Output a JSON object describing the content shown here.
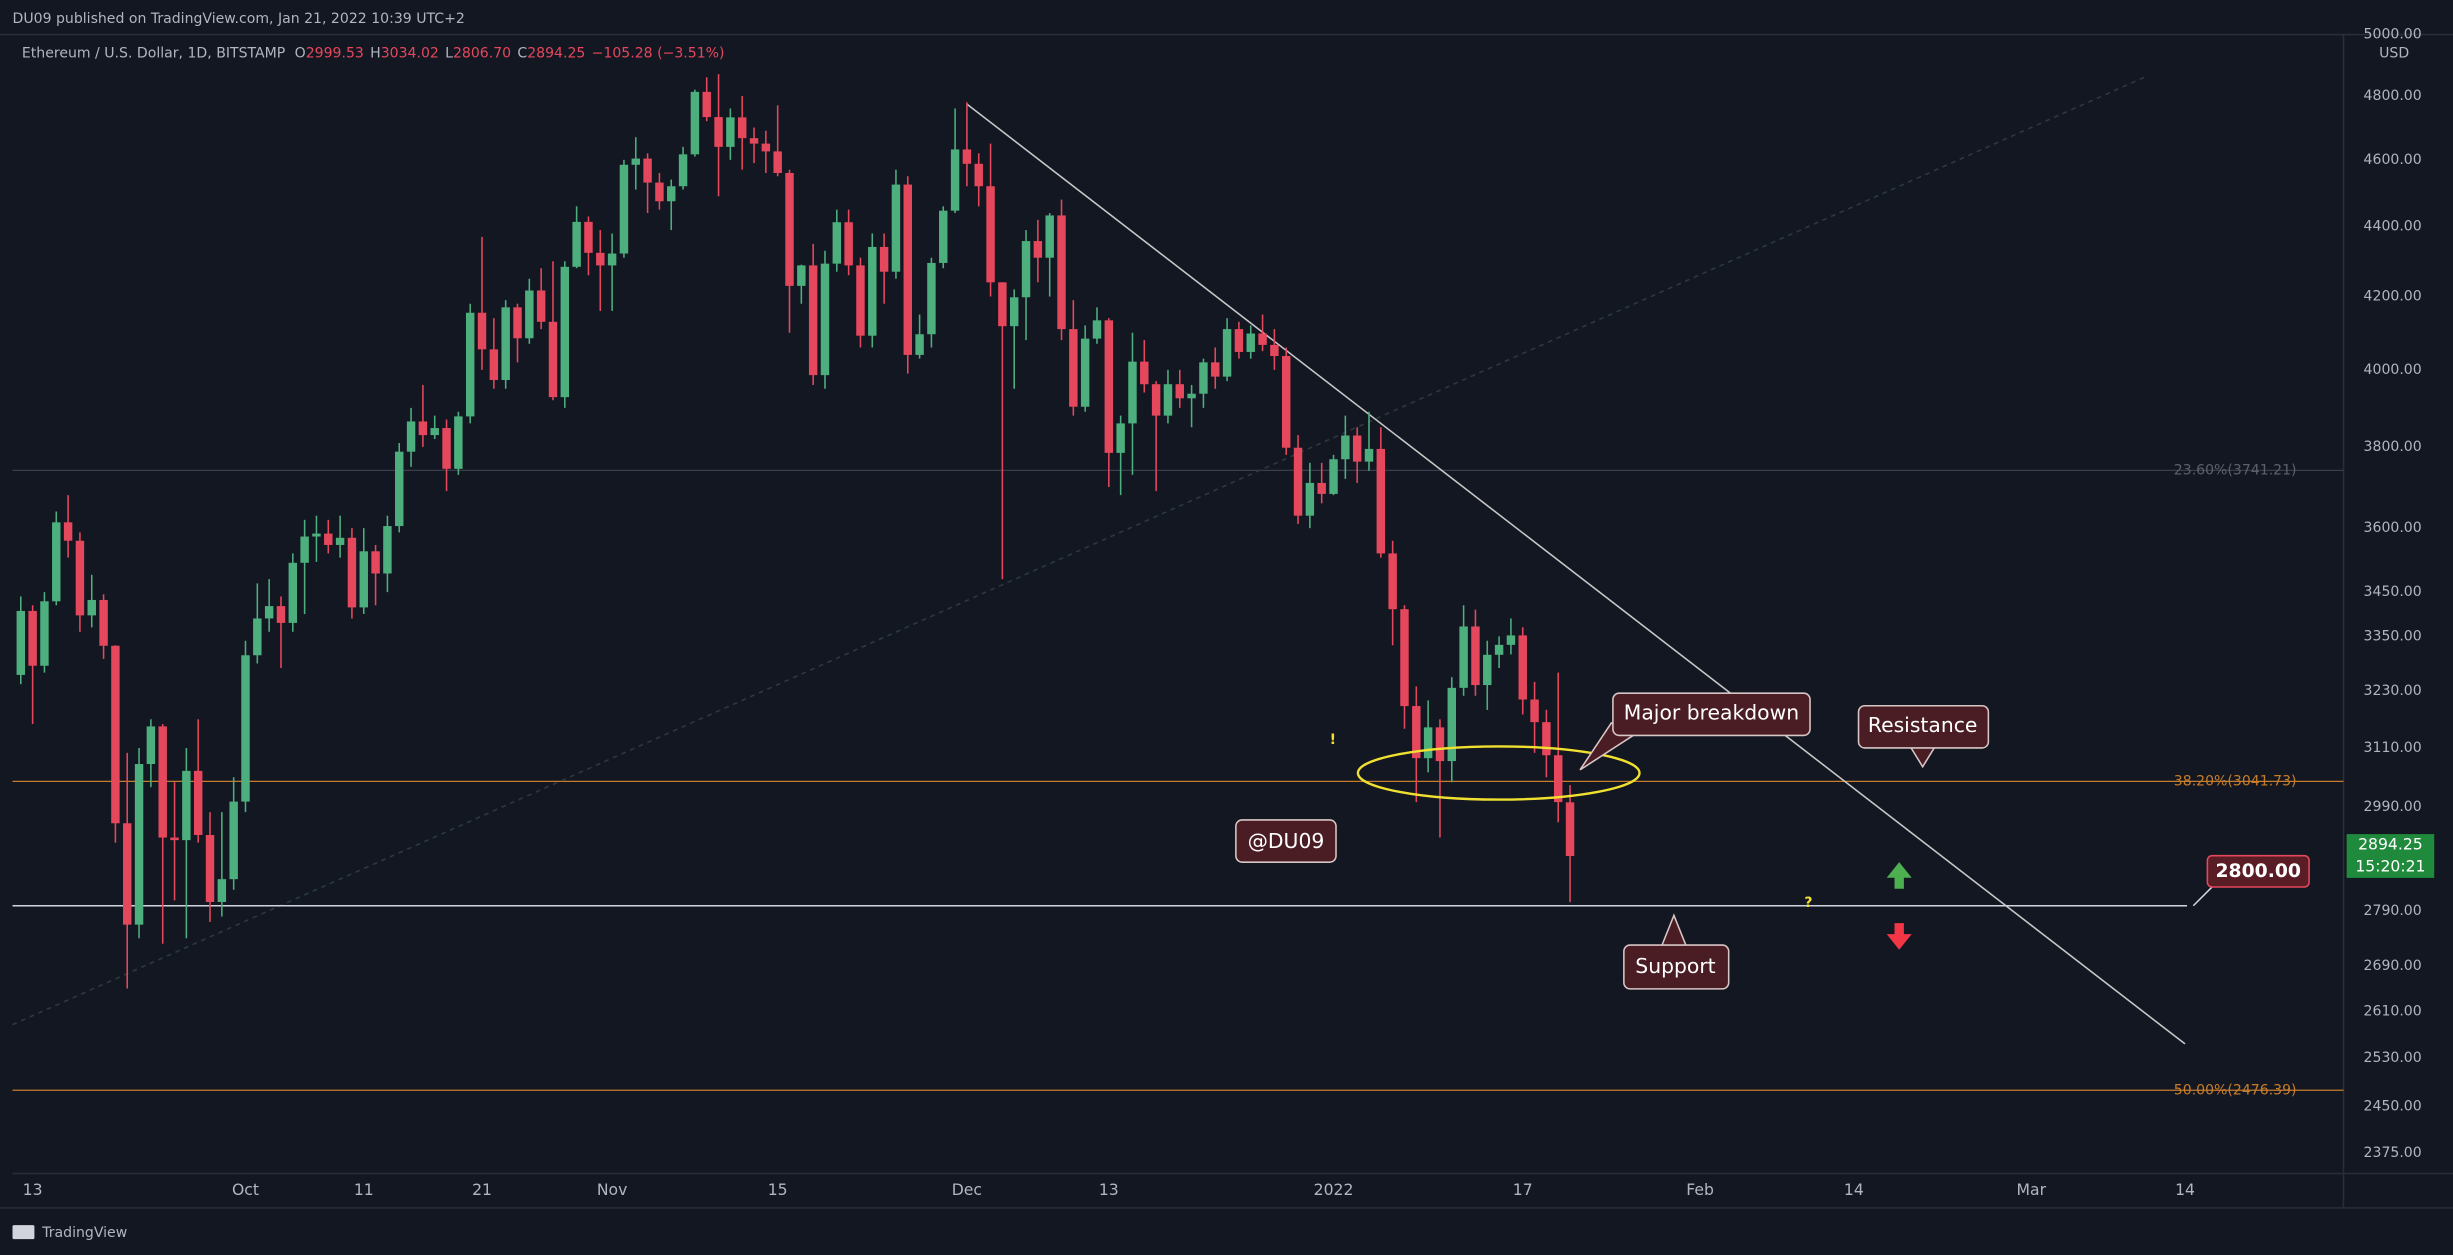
{
  "header": {
    "publisher": "DU09 published on TradingView.com, Jan 21, 2022 10:39 UTC+2",
    "footer": "TradingView"
  },
  "chart_data": {
    "type": "candlestick",
    "title": "Ethereum / U.S. Dollar, 1D, BITSTAMP",
    "ohlc_legend": [
      {
        "key": "O",
        "text": "2999.53"
      },
      {
        "key": "H",
        "text": "3034.02"
      },
      {
        "key": "L",
        "text": "2806.70"
      },
      {
        "key": "C",
        "text": "2894.25"
      }
    ],
    "change": "−105.28 (−3.51%)",
    "x": [
      -1,
      0,
      1,
      2,
      3,
      4,
      5,
      6,
      7,
      8,
      9,
      10,
      11,
      12,
      13,
      14,
      15,
      16,
      17,
      18,
      19,
      20,
      21,
      22,
      23,
      24,
      25,
      26,
      27,
      28,
      29,
      30,
      31,
      32,
      33,
      34,
      35,
      36,
      37,
      38,
      39,
      40,
      41,
      42,
      43,
      44,
      45,
      46,
      47,
      48,
      49,
      50,
      51,
      52,
      53,
      54,
      55,
      56,
      57,
      58,
      59,
      60,
      61,
      62,
      63,
      64,
      65,
      66,
      67,
      68,
      69,
      70,
      71,
      72,
      73,
      74,
      75,
      76,
      77,
      78,
      79,
      80,
      81,
      82,
      83,
      84,
      85,
      86,
      87,
      88,
      89,
      90,
      91,
      92,
      93,
      94,
      95,
      96,
      97,
      98,
      99,
      100,
      101,
      102,
      103,
      104,
      105,
      106,
      107,
      108,
      109,
      110,
      111,
      112,
      113,
      114,
      115,
      116,
      117,
      118,
      119,
      120,
      121,
      122,
      123,
      124,
      125,
      126,
      127,
      128,
      129,
      130
    ],
    "open": [
      3265,
      3407,
      3285,
      3429,
      3614,
      3570,
      3397,
      3432,
      3329,
      2958,
      2765,
      3077,
      3155,
      2930,
      2925,
      3063,
      2935,
      2807,
      2850,
      3001,
      3308,
      3390,
      3418,
      3380,
      3518,
      3580,
      3587,
      3560,
      3577,
      3415,
      3545,
      3493,
      3605,
      3788,
      3865,
      3830,
      3848,
      3745,
      3878,
      4155,
      4055,
      3973,
      4170,
      4085,
      4217,
      4130,
      3928,
      4284,
      4414,
      4324,
      4288,
      4322,
      4585,
      4604,
      4531,
      4475,
      4520,
      4617,
      4813,
      4733,
      4640,
      4732,
      4667,
      4650,
      4626,
      4560,
      4230,
      4288,
      3986,
      4293,
      4413,
      4288,
      4092,
      4341,
      4270,
      4525,
      4040,
      4096,
      4295,
      4447,
      4632,
      4588,
      4520,
      4240,
      4118,
      4198,
      4358,
      4310,
      4433,
      4110,
      3903,
      4084,
      4134,
      3785,
      3860,
      4022,
      3962,
      3880,
      3962,
      3925,
      3937,
      4020,
      3982,
      4110,
      4048,
      4098,
      4067,
      4037,
      3798,
      3630,
      3710,
      3683,
      3769,
      3829,
      3763,
      3795,
      3540,
      3411,
      3198,
      3089,
      3153,
      3083,
      3237,
      3372,
      3243,
      3309,
      3331,
      3352,
      3212,
      3164,
      3095,
      2999.53
    ],
    "high": [
      3440,
      3420,
      3450,
      3640,
      3680,
      3590,
      3490,
      3445,
      3330,
      3100,
      3110,
      3170,
      3160,
      3040,
      3110,
      3170,
      2980,
      2980,
      3050,
      3340,
      3470,
      3480,
      3440,
      3540,
      3620,
      3630,
      3620,
      3630,
      3600,
      3600,
      3560,
      3630,
      3810,
      3900,
      3960,
      3880,
      3870,
      3890,
      4180,
      4370,
      4140,
      4190,
      4180,
      4250,
      4280,
      4300,
      4300,
      4460,
      4430,
      4390,
      4380,
      4600,
      4670,
      4620,
      4560,
      4540,
      4640,
      4820,
      4860,
      4870,
      4760,
      4800,
      4700,
      4690,
      4770,
      4570,
      4290,
      4350,
      4330,
      4450,
      4450,
      4310,
      4380,
      4380,
      4570,
      4550,
      4150,
      4310,
      4460,
      4760,
      4780,
      4620,
      4650,
      4240,
      4220,
      4390,
      4420,
      4440,
      4480,
      4190,
      4120,
      4170,
      4140,
      3880,
      4100,
      4080,
      3970,
      4000,
      4000,
      3960,
      4030,
      4060,
      4140,
      4130,
      4120,
      4150,
      4110,
      4060,
      3830,
      3760,
      3760,
      3780,
      3880,
      3850,
      3890,
      3850,
      3570,
      3420,
      3240,
      3210,
      3170,
      3260,
      3420,
      3410,
      3340,
      3350,
      3390,
      3370,
      3250,
      3190,
      3270,
      3034.02
    ],
    "low": [
      3245,
      3160,
      3270,
      3420,
      3530,
      3360,
      3370,
      3300,
      2920,
      2650,
      2740,
      3030,
      2730,
      2810,
      2740,
      2920,
      2770,
      2780,
      2830,
      2980,
      3290,
      3360,
      3280,
      3360,
      3400,
      3520,
      3540,
      3530,
      3390,
      3400,
      3420,
      3450,
      3590,
      3750,
      3800,
      3820,
      3690,
      3730,
      3860,
      4000,
      3950,
      3950,
      4020,
      4070,
      4110,
      3920,
      3900,
      4280,
      4260,
      4160,
      4160,
      4310,
      4510,
      4440,
      4450,
      4390,
      4510,
      4610,
      4720,
      4490,
      4600,
      4570,
      4590,
      4560,
      4550,
      4100,
      4180,
      3960,
      3950,
      4270,
      4260,
      4060,
      4060,
      4180,
      4250,
      3990,
      4030,
      4060,
      4280,
      4440,
      4520,
      4460,
      4200,
      3480,
      3950,
      4080,
      4240,
      4200,
      4080,
      3880,
      3890,
      4070,
      3700,
      3680,
      3730,
      3940,
      3690,
      3860,
      3900,
      3850,
      3900,
      3950,
      3970,
      4030,
      4030,
      4050,
      4000,
      3780,
      3610,
      3600,
      3660,
      3680,
      3720,
      3710,
      3740,
      3530,
      3330,
      3150,
      3000,
      3060,
      2930,
      3040,
      3220,
      3220,
      3190,
      3280,
      3310,
      3180,
      3100,
      3050,
      2960,
      2806.7
    ],
    "close": [
      3407,
      3285,
      3429,
      3614,
      3570,
      3397,
      3432,
      3329,
      2958,
      2765,
      3077,
      3155,
      2930,
      2925,
      3063,
      2935,
      2807,
      2850,
      3001,
      3308,
      3390,
      3418,
      3380,
      3518,
      3580,
      3587,
      3560,
      3577,
      3415,
      3545,
      3493,
      3605,
      3788,
      3865,
      3830,
      3848,
      3745,
      3878,
      4155,
      4055,
      3973,
      4170,
      4085,
      4217,
      4130,
      3928,
      4284,
      4414,
      4324,
      4288,
      4322,
      4585,
      4604,
      4531,
      4475,
      4520,
      4617,
      4813,
      4733,
      4640,
      4732,
      4667,
      4650,
      4626,
      4560,
      4230,
      4288,
      3986,
      4293,
      4413,
      4288,
      4092,
      4341,
      4270,
      4525,
      4040,
      4096,
      4295,
      4447,
      4632,
      4588,
      4520,
      4240,
      4118,
      4198,
      4358,
      4310,
      4433,
      4110,
      3903,
      4084,
      4134,
      3785,
      3860,
      4022,
      3962,
      3880,
      3962,
      3925,
      3937,
      4020,
      3982,
      4110,
      4048,
      4098,
      4067,
      4037,
      3798,
      3630,
      3710,
      3683,
      3769,
      3829,
      3763,
      3795,
      3540,
      3411,
      3198,
      3089,
      3153,
      3083,
      3237,
      3372,
      3243,
      3309,
      3331,
      3352,
      3212,
      3164,
      3095,
      3000,
      2894.25
    ],
    "up_color": "#4caf7d",
    "down_color": "#e5475c",
    "log_scale": true,
    "xlim": [
      -1.7,
      195.4
    ],
    "xticks": [
      {
        "value": 0,
        "label": "13"
      },
      {
        "value": 18,
        "label": "Oct"
      },
      {
        "value": 28,
        "label": "11"
      },
      {
        "value": 38,
        "label": "21"
      },
      {
        "value": 49,
        "label": "Nov"
      },
      {
        "value": 63,
        "label": "15"
      },
      {
        "value": 79,
        "label": "Dec"
      },
      {
        "value": 91,
        "label": "13"
      },
      {
        "value": 110,
        "label": "2022"
      },
      {
        "value": 126,
        "label": "17"
      },
      {
        "value": 141,
        "label": "Feb"
      },
      {
        "value": 154,
        "label": "14"
      },
      {
        "value": 169,
        "label": "Mar"
      },
      {
        "value": 182,
        "label": "14"
      }
    ],
    "ylim": [
      2343,
      5000
    ],
    "yticks": [
      {
        "value": 5000,
        "label": "5000.00"
      },
      {
        "value": 4800,
        "label": "4800.00"
      },
      {
        "value": 4600,
        "label": "4600.00"
      },
      {
        "value": 4400,
        "label": "4400.00"
      },
      {
        "value": 4200,
        "label": "4200.00"
      },
      {
        "value": 4000,
        "label": "4000.00"
      },
      {
        "value": 3800,
        "label": "3800.00"
      },
      {
        "value": 3600,
        "label": "3600.00"
      },
      {
        "value": 3450,
        "label": "3450.00"
      },
      {
        "value": 3350,
        "label": "3350.00"
      },
      {
        "value": 3230,
        "label": "3230.00"
      },
      {
        "value": 3110,
        "label": "3110.00"
      },
      {
        "value": 2990,
        "label": "2990.00"
      },
      {
        "value": 2790,
        "label": "2790.00"
      },
      {
        "value": 2690,
        "label": "2690.00"
      },
      {
        "value": 2610,
        "label": "2610.00"
      },
      {
        "value": 2530,
        "label": "2530.00"
      },
      {
        "value": 2450,
        "label": "2450.00"
      },
      {
        "value": 2375,
        "label": "2375.00"
      }
    ],
    "y_unit": "USD",
    "last_price": {
      "label": "2894.25",
      "countdown": "15:20:21"
    },
    "fib_levels": [
      {
        "value": 3741.21,
        "label": "23.60%(3741.21)",
        "color": "#3a3e4a",
        "text_color": "#5d606b"
      },
      {
        "value": 3041.73,
        "label": "38.20%(3041.73)",
        "color": "#c77c2b",
        "text_color": "#c77c2b"
      },
      {
        "value": 2476.39,
        "label": "50.00%(2476.39)",
        "color": "#c77c2b",
        "text_color": "#c77c2b"
      }
    ],
    "horizontal_line": {
      "value": 2800,
      "label": "2800.00"
    },
    "trend_lines": [
      {
        "x": [
          79,
          182
        ],
        "y": [
          4774,
          2554
        ],
        "color": "#c8c8c8",
        "dashed": false
      },
      {
        "x": [
          -1.7,
          178.8
        ],
        "y": [
          2587,
          4864
        ],
        "color": "#2b3b3a",
        "dashed": true
      }
    ],
    "annotations": [
      "Major breakdown",
      "Resistance",
      "Support",
      "@DU09",
      "!",
      "?"
    ]
  }
}
